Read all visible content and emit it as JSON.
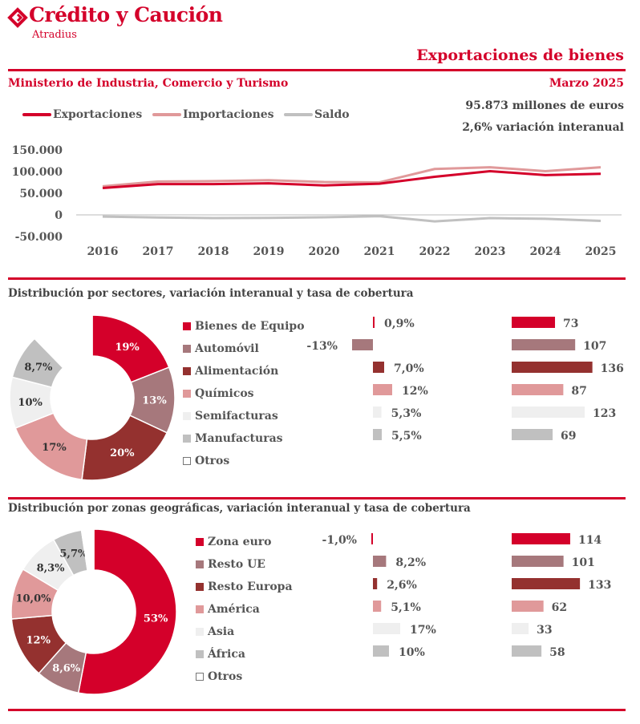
{
  "header": {
    "brand_name": "Crédito y Caución",
    "brand_sub": "Atradius",
    "report_title": "Exportaciones de bienes",
    "source": "Ministerio de Industria, Comercio y Turismo",
    "period": "Marzo 2025",
    "kpi_value": "95.873 millones de euros",
    "kpi_change": "2,6% variación interanual",
    "brand_color": "#d4002a"
  },
  "chart_data": [
    {
      "type": "line",
      "x": [
        "2016",
        "2017",
        "2018",
        "2019",
        "2020",
        "2021",
        "2022",
        "2023",
        "2024",
        "2025"
      ],
      "yticks": [
        "150.000",
        "100.000",
        "50.000",
        "0",
        "-50.000"
      ],
      "ylim": [
        -50000,
        150000
      ],
      "grid": false,
      "legend": "top-left",
      "series": [
        {
          "name": "Exportaciones",
          "color": "#d4002a",
          "values": [
            62000,
            71000,
            71000,
            73000,
            68000,
            72000,
            88000,
            101000,
            92000,
            95000
          ]
        },
        {
          "name": "Importaciones",
          "color": "#e0999a",
          "values": [
            66000,
            77000,
            78000,
            80000,
            76000,
            75000,
            106000,
            110000,
            101000,
            110000
          ]
        },
        {
          "name": "Saldo",
          "color": "#c0c0c0",
          "values": [
            -4000,
            -6000,
            -7500,
            -7000,
            -5500,
            -3000,
            -15000,
            -7500,
            -9000,
            -14000
          ]
        }
      ]
    },
    {
      "type": "pie",
      "title": "Distribución por sectores,  variación interanual y tasa de cobertura",
      "categories": [
        "Bienes de Equipo",
        "Automóvil",
        "Alimentación",
        "Químicos",
        "Semifacturas",
        "Manufacturas",
        "Otros"
      ],
      "colors": [
        "#d4002a",
        "#a6787c",
        "#94312f",
        "#e0999a",
        "#efefef",
        "#c0c0c0",
        "#ffffff"
      ],
      "values": [
        19,
        13,
        20,
        17,
        10,
        8.7,
        12.3
      ],
      "slice_labels": [
        "19%",
        "13%",
        "20%",
        "17%",
        "10%",
        "8,7%",
        ""
      ],
      "variation": [
        0.9,
        -13,
        7.0,
        12,
        5.3,
        5.5
      ],
      "variation_labels": [
        "0,9%",
        "-13%",
        "7,0%",
        "12%",
        "5,3%",
        "5,5%"
      ],
      "coverage": [
        73,
        107,
        136,
        87,
        123,
        69
      ]
    },
    {
      "type": "pie",
      "title": "Distribución por zonas geográficas, variación interanual y tasa de cobertura",
      "categories": [
        "Zona euro",
        "Resto UE",
        "Resto Europa",
        "América",
        "Asia",
        "África",
        "Otros"
      ],
      "colors": [
        "#d4002a",
        "#a6787c",
        "#94312f",
        "#e0999a",
        "#efefef",
        "#c0c0c0",
        "#ffffff"
      ],
      "values": [
        53,
        8.6,
        12,
        10.0,
        8.3,
        5.7,
        2.4
      ],
      "slice_labels": [
        "53%",
        "8,6%",
        "12%",
        "10,0%",
        "8,3%",
        "5,7%",
        ""
      ],
      "variation": [
        -1.0,
        8.2,
        2.6,
        5.1,
        17,
        10
      ],
      "variation_labels": [
        "-1,0%",
        "8,2%",
        "2,6%",
        "5,1%",
        "17%",
        "10%"
      ],
      "coverage": [
        114,
        101,
        133,
        62,
        33,
        58
      ]
    }
  ]
}
